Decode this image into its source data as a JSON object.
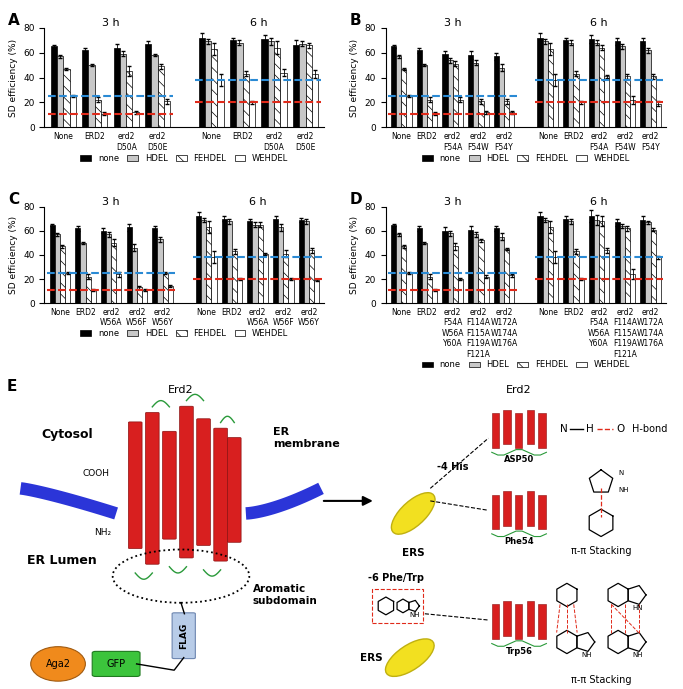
{
  "chart_data": [
    {
      "type": "bar",
      "panel": "A",
      "y_label": "SD efficiency (%)",
      "ylim": [
        0,
        80
      ],
      "yticks": [
        0,
        20,
        40,
        60,
        80
      ],
      "legend": "bottom",
      "series": [
        {
          "name": "none",
          "color": "#000000"
        },
        {
          "name": "HDEL",
          "color": "#c8c8c8"
        },
        {
          "name": "FEHDEL",
          "color": "#ffffff"
        },
        {
          "name": "WEHDEL",
          "color": "#ffffff"
        }
      ],
      "groups": [
        {
          "label": "3 h",
          "categories": [
            "None",
            "ERD2",
            "erd2\nD50A",
            "erd2\nD50E"
          ],
          "values": [
            [
              65,
              62,
              64,
              67
            ],
            [
              57,
              50,
              59,
              58
            ],
            [
              47,
              22,
              45,
              49
            ],
            [
              25,
              11,
              12,
              21
            ]
          ],
          "errors": [
            [
              1,
              2,
              3,
              2
            ],
            [
              1,
              1,
              2,
              1
            ],
            [
              1,
              2,
              4,
              2
            ],
            [
              1,
              1,
              1,
              2
            ]
          ],
          "reference_lines": [
            {
              "value": 25,
              "color": "#2a8ad4",
              "line_style": "dashed"
            },
            {
              "value": 11,
              "color": "#e02a1a",
              "line_style": "dashed"
            }
          ]
        },
        {
          "label": "6 h",
          "categories": [
            "None",
            "ERD2",
            "erd2\nD50A",
            "erd2\nD50E"
          ],
          "values": [
            [
              72,
              70,
              71,
              66
            ],
            [
              69,
              68,
              69,
              67
            ],
            [
              63,
              43,
              64,
              66
            ],
            [
              38,
              20,
              44,
              43
            ]
          ],
          "errors": [
            [
              4,
              2,
              3,
              4
            ],
            [
              2,
              2,
              3,
              2
            ],
            [
              5,
              2,
              5,
              2
            ],
            [
              5,
              1,
              3,
              3
            ]
          ],
          "reference_lines": [
            {
              "value": 38,
              "color": "#2a8ad4",
              "line_style": "dashed"
            },
            {
              "value": 20,
              "color": "#e02a1a",
              "line_style": "dashed"
            }
          ]
        }
      ]
    },
    {
      "type": "bar",
      "panel": "B",
      "y_label": "SD efficiency (%)",
      "ylim": [
        0,
        80
      ],
      "yticks": [
        0,
        20,
        40,
        60,
        80
      ],
      "legend": "bottom",
      "series": [
        {
          "name": "none",
          "color": "#000000"
        },
        {
          "name": "HDEL",
          "color": "#c8c8c8"
        },
        {
          "name": "FEHDEL",
          "color": "#ffffff"
        },
        {
          "name": "WEHDEL",
          "color": "#ffffff"
        }
      ],
      "groups": [
        {
          "label": "3 h",
          "categories": [
            "None",
            "ERD2",
            "erd2\nF54A",
            "erd2\nF54W",
            "erd2\nF54Y"
          ],
          "values": [
            [
              65,
              62,
              59,
              58,
              57
            ],
            [
              57,
              50,
              54,
              52,
              48
            ],
            [
              47,
              22,
              51,
              21,
              21
            ],
            [
              25,
              11,
              22,
              12,
              12
            ]
          ],
          "errors": [
            [
              1,
              2,
              2,
              3,
              3
            ],
            [
              1,
              1,
              2,
              2,
              3
            ],
            [
              1,
              2,
              2,
              2,
              2
            ],
            [
              1,
              1,
              2,
              1,
              1
            ]
          ],
          "reference_lines": [
            {
              "value": 25,
              "color": "#2a8ad4",
              "line_style": "dashed"
            },
            {
              "value": 11,
              "color": "#e02a1a",
              "line_style": "dashed"
            }
          ]
        },
        {
          "label": "6 h",
          "categories": [
            "None",
            "ERD2",
            "erd2\nF54A",
            "erd2\nF54W",
            "erd2\nF54Y"
          ],
          "values": [
            [
              72,
              70,
              71,
              69,
              69
            ],
            [
              69,
              68,
              68,
              65,
              62
            ],
            [
              63,
              43,
              64,
              41,
              41
            ],
            [
              38,
              20,
              41,
              22,
              19
            ]
          ],
          "errors": [
            [
              4,
              2,
              3,
              3,
              3
            ],
            [
              2,
              2,
              2,
              2,
              2
            ],
            [
              5,
              2,
              2,
              2,
              2
            ],
            [
              5,
              1,
              1,
              3,
              2
            ]
          ],
          "reference_lines": [
            {
              "value": 38,
              "color": "#2a8ad4",
              "line_style": "dashed"
            },
            {
              "value": 20,
              "color": "#e02a1a",
              "line_style": "dashed"
            }
          ]
        }
      ]
    },
    {
      "type": "bar",
      "panel": "C",
      "y_label": "SD efficiency (%)",
      "ylim": [
        0,
        80
      ],
      "yticks": [
        0,
        20,
        40,
        60,
        80
      ],
      "legend": "bottom",
      "series": [
        {
          "name": "none",
          "color": "#000000"
        },
        {
          "name": "HDEL",
          "color": "#c8c8c8"
        },
        {
          "name": "FEHDEL",
          "color": "#ffffff"
        },
        {
          "name": "WEHDEL",
          "color": "#ffffff"
        }
      ],
      "groups": [
        {
          "label": "3 h",
          "categories": [
            "None",
            "ERD2",
            "erd2\nW56A",
            "erd2\nW56F",
            "erd2\nW56Y"
          ],
          "values": [
            [
              65,
              62,
              60,
              63,
              62
            ],
            [
              57,
              50,
              57,
              46,
              53
            ],
            [
              47,
              22,
              50,
              13,
              25
            ],
            [
              25,
              11,
              24,
              11,
              14
            ]
          ],
          "errors": [
            [
              1,
              2,
              2,
              3,
              2
            ],
            [
              1,
              1,
              2,
              3,
              2
            ],
            [
              1,
              2,
              3,
              1,
              1
            ],
            [
              1,
              1,
              2,
              1,
              1
            ]
          ],
          "reference_lines": [
            {
              "value": 25,
              "color": "#2a8ad4",
              "line_style": "dashed"
            },
            {
              "value": 11,
              "color": "#e02a1a",
              "line_style": "dashed"
            }
          ]
        },
        {
          "label": "6 h",
          "categories": [
            "None",
            "ERD2",
            "erd2\nW56A",
            "erd2\nW56F",
            "erd2\nW56Y"
          ],
          "values": [
            [
              72,
              70,
              68,
              70,
              69
            ],
            [
              69,
              68,
              65,
              63,
              68
            ],
            [
              63,
              43,
              65,
              41,
              44
            ],
            [
              38,
              20,
              41,
              20,
              19
            ]
          ],
          "errors": [
            [
              4,
              2,
              2,
              2,
              2
            ],
            [
              2,
              2,
              2,
              3,
              2
            ],
            [
              5,
              2,
              2,
              3,
              2
            ],
            [
              5,
              1,
              1,
              1,
              1
            ]
          ],
          "reference_lines": [
            {
              "value": 38,
              "color": "#2a8ad4",
              "line_style": "dashed"
            },
            {
              "value": 20,
              "color": "#e02a1a",
              "line_style": "dashed"
            }
          ]
        }
      ]
    },
    {
      "type": "bar",
      "panel": "D",
      "y_label": "SD efficiency (%)",
      "ylim": [
        0,
        80
      ],
      "yticks": [
        0,
        20,
        40,
        60,
        80
      ],
      "legend": "bottom",
      "series": [
        {
          "name": "none",
          "color": "#000000"
        },
        {
          "name": "HDEL",
          "color": "#c8c8c8"
        },
        {
          "name": "FEHDEL",
          "color": "#ffffff"
        },
        {
          "name": "WEHDEL",
          "color": "#ffffff"
        }
      ],
      "groups": [
        {
          "label": "3 h",
          "categories": [
            "None",
            "ERD2",
            "erd2\nF54A\nW56A\nY60A",
            "erd2\nF114A\nF115A\nF119A\nF121A",
            "erd2\nW172A\nW174A\nW176A"
          ],
          "values": [
            [
              65,
              62,
              60,
              61,
              62
            ],
            [
              57,
              50,
              58,
              57,
              55
            ],
            [
              47,
              22,
              47,
              52,
              45
            ],
            [
              25,
              11,
              20,
              22,
              23
            ]
          ],
          "errors": [
            [
              1,
              2,
              3,
              3,
              2
            ],
            [
              1,
              1,
              2,
              2,
              3
            ],
            [
              1,
              2,
              3,
              1,
              1
            ],
            [
              1,
              1,
              1,
              1,
              1
            ]
          ],
          "reference_lines": [
            {
              "value": 25,
              "color": "#2a8ad4",
              "line_style": "dashed"
            },
            {
              "value": 11,
              "color": "#e02a1a",
              "line_style": "dashed"
            }
          ]
        },
        {
          "label": "6 h",
          "categories": [
            "None",
            "ERD2",
            "erd2\nF54A\nW56A\nY60A",
            "erd2\nF114A\nF115A\nF119A\nF121A",
            "erd2\nW172A\nW174A\nW176A"
          ],
          "values": [
            [
              72,
              70,
              72,
              67,
              69
            ],
            [
              69,
              68,
              69,
              64,
              67
            ],
            [
              63,
              43,
              68,
              62,
              61
            ],
            [
              38,
              20,
              44,
              24,
              38
            ]
          ],
          "errors": [
            [
              4,
              2,
              5,
              3,
              3
            ],
            [
              2,
              2,
              4,
              2,
              1
            ],
            [
              5,
              2,
              4,
              2,
              1
            ],
            [
              5,
              1,
              2,
              4,
              1
            ]
          ],
          "reference_lines": [
            {
              "value": 38,
              "color": "#2a8ad4",
              "line_style": "dashed"
            },
            {
              "value": 20,
              "color": "#e02a1a",
              "line_style": "dashed"
            }
          ]
        }
      ]
    }
  ],
  "diagram": {
    "panel": "E",
    "membrane_view": {
      "protein": "Erd2",
      "compartments": [
        "Cytosol",
        "ER Lumen"
      ],
      "membrane": "ER\nmembrane",
      "termini": [
        "COOH",
        "NH₂"
      ],
      "subdomain": "Aromatic\nsubdomain",
      "tags": [
        "FLAG",
        "GFP",
        "Aga2"
      ]
    },
    "interactions": {
      "protein": "Erd2",
      "ligand": "ERS",
      "motifs": [
        "-4 His",
        "-6 Phe/Trp"
      ],
      "rows": [
        {
          "residue": "ASP50",
          "atoms": [
            "N",
            "H",
            "O"
          ],
          "label": "H-bond"
        },
        {
          "residue": "Phe54",
          "label": "π-π Stacking",
          "ring_labels": [
            "N",
            "NH"
          ]
        },
        {
          "residue": "Trp56",
          "label": "π-π Stacking",
          "ring_labels": [
            "NH",
            "HN",
            "NH"
          ]
        }
      ]
    }
  }
}
